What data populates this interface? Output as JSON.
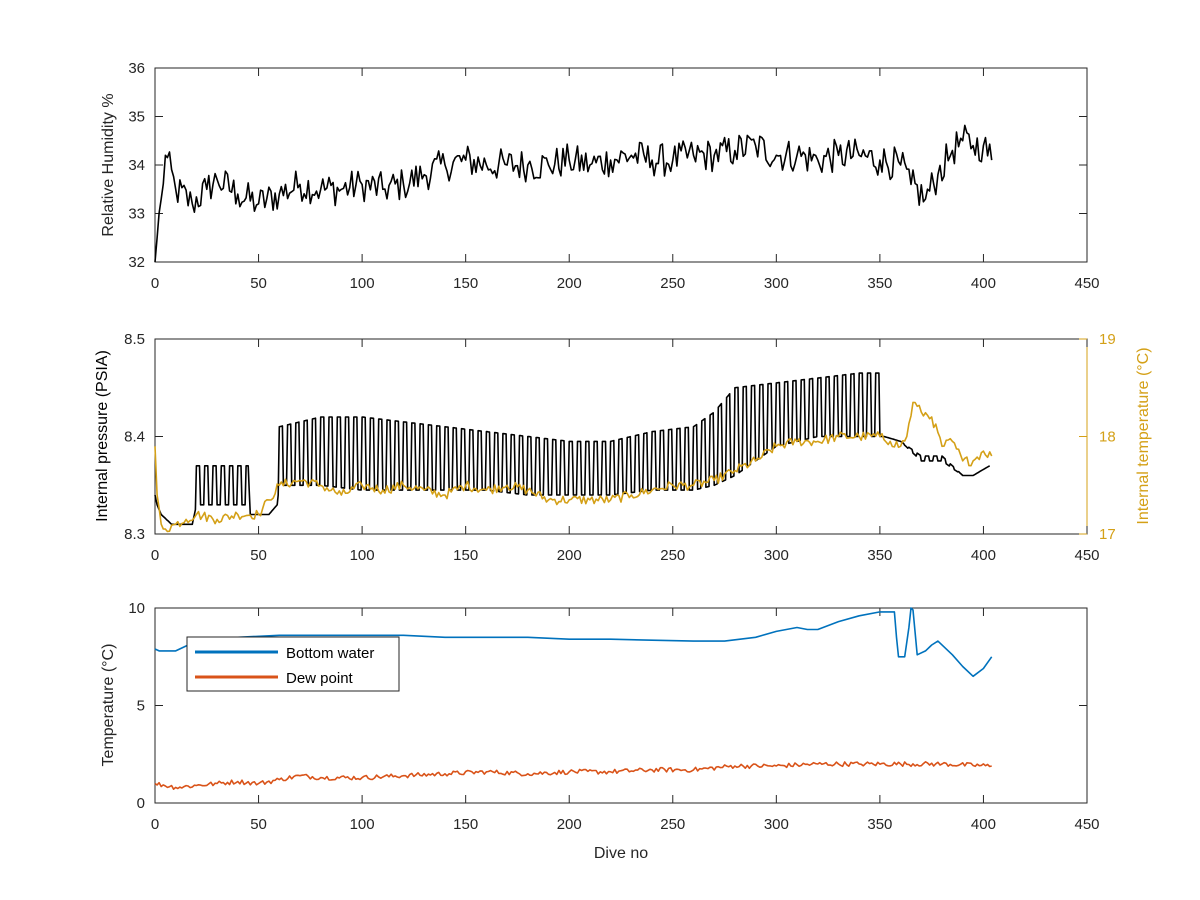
{
  "figure": {
    "xlabel_bottom": "Dive no"
  },
  "chart_data": [
    {
      "type": "line",
      "title": "",
      "xlabel": "",
      "ylabel": "Relative Humidity %",
      "xlim": [
        0,
        450
      ],
      "ylim": [
        32,
        36
      ],
      "xticks": [
        "0",
        "50",
        "100",
        "150",
        "200",
        "250",
        "300",
        "350",
        "400",
        "450"
      ],
      "yticks": [
        "32",
        "33",
        "34",
        "35",
        "36"
      ],
      "grid": false,
      "series": [
        {
          "color": "#000000",
          "noise": 0.35,
          "x": [
            0,
            1,
            3,
            5,
            10,
            18,
            25,
            30,
            40,
            50,
            60,
            70,
            80,
            90,
            100,
            110,
            120,
            130,
            140,
            150,
            160,
            170,
            180,
            190,
            200,
            210,
            220,
            230,
            240,
            250,
            260,
            270,
            280,
            290,
            300,
            310,
            320,
            330,
            340,
            350,
            360,
            365,
            372,
            378,
            385,
            390,
            395,
            400,
            404
          ],
          "y": [
            32.0,
            32.5,
            33.3,
            34.2,
            33.5,
            33.2,
            33.5,
            33.7,
            33.4,
            33.2,
            33.4,
            33.6,
            33.5,
            33.5,
            33.6,
            33.5,
            33.6,
            33.8,
            34.0,
            34.1,
            34.0,
            34.0,
            34.0,
            34.0,
            34.1,
            34.0,
            34.1,
            34.2,
            34.1,
            34.1,
            34.2,
            34.2,
            34.3,
            34.4,
            34.2,
            34.2,
            34.1,
            34.2,
            34.2,
            34.1,
            34.0,
            33.6,
            33.3,
            33.8,
            34.3,
            34.5,
            34.4,
            34.4,
            34.1
          ]
        }
      ]
    },
    {
      "type": "line",
      "title": "",
      "xlabel": "",
      "ylabel": "Internal pressure (PSIA)",
      "ylabel_right": "Internal temperature (°C)",
      "xlim": [
        0,
        450
      ],
      "ylim": [
        8.3,
        8.5
      ],
      "ylim_right": [
        17,
        19
      ],
      "xticks": [
        "0",
        "50",
        "100",
        "150",
        "200",
        "250",
        "300",
        "350",
        "400",
        "450"
      ],
      "yticks": [
        "8.3",
        "8.4",
        "8.5"
      ],
      "yticks_right": [
        "17",
        "18",
        "19"
      ],
      "grid": false,
      "series": [
        {
          "color": "#000000",
          "axis": "left",
          "square_wave": true,
          "x": [
            0,
            1,
            3,
            8,
            12,
            18,
            20,
            30,
            40,
            45,
            46,
            50,
            55,
            59,
            60,
            80,
            100,
            120,
            140,
            160,
            180,
            200,
            220,
            240,
            260,
            270,
            280,
            300,
            320,
            340,
            350,
            352,
            360,
            370,
            380,
            390,
            395,
            403
          ],
          "low": [
            8.34,
            8.33,
            8.32,
            8.31,
            8.31,
            8.31,
            8.33,
            8.33,
            8.33,
            8.33,
            8.32,
            8.32,
            8.32,
            8.33,
            8.35,
            8.35,
            8.345,
            8.345,
            8.345,
            8.345,
            8.34,
            8.34,
            8.34,
            8.345,
            8.345,
            8.35,
            8.36,
            8.39,
            8.4,
            8.4,
            8.4,
            8.4,
            8.395,
            8.375,
            8.375,
            8.36,
            8.36,
            8.37
          ],
          "high": [
            8.34,
            8.33,
            8.32,
            8.31,
            8.31,
            8.31,
            8.37,
            8.37,
            8.37,
            8.37,
            8.32,
            8.32,
            8.32,
            8.33,
            8.41,
            8.42,
            8.42,
            8.415,
            8.41,
            8.405,
            8.4,
            8.395,
            8.395,
            8.405,
            8.41,
            8.425,
            8.45,
            8.455,
            8.46,
            8.465,
            8.465,
            8.4,
            8.395,
            8.38,
            8.38,
            8.36,
            8.36,
            8.37
          ]
        },
        {
          "color": "#D4A017",
          "axis": "right",
          "noise": 0.05,
          "x": [
            0,
            1,
            3,
            5,
            10,
            15,
            20,
            30,
            40,
            50,
            55,
            60,
            70,
            80,
            90,
            100,
            110,
            120,
            130,
            140,
            150,
            160,
            170,
            180,
            190,
            200,
            210,
            220,
            230,
            240,
            250,
            260,
            270,
            280,
            290,
            300,
            310,
            320,
            330,
            340,
            350,
            355,
            360,
            363,
            366,
            370,
            375,
            380,
            385,
            390,
            395,
            400,
            404
          ],
          "y": [
            17.9,
            17.4,
            17.1,
            17.05,
            17.1,
            17.15,
            17.2,
            17.15,
            17.2,
            17.2,
            17.35,
            17.5,
            17.55,
            17.5,
            17.4,
            17.5,
            17.45,
            17.5,
            17.45,
            17.4,
            17.5,
            17.45,
            17.5,
            17.45,
            17.35,
            17.35,
            17.35,
            17.35,
            17.4,
            17.45,
            17.5,
            17.5,
            17.55,
            17.65,
            17.75,
            17.9,
            17.95,
            17.95,
            18.0,
            18.0,
            18.0,
            17.95,
            17.9,
            18.0,
            18.35,
            18.25,
            18.2,
            17.9,
            17.95,
            17.75,
            17.75,
            17.85,
            17.8
          ]
        }
      ]
    },
    {
      "type": "line",
      "title": "",
      "xlabel": "Dive no",
      "ylabel": "Temperature (°C)",
      "xlim": [
        0,
        450
      ],
      "ylim": [
        0,
        10
      ],
      "xticks": [
        "0",
        "50",
        "100",
        "150",
        "200",
        "250",
        "300",
        "350",
        "400",
        "450"
      ],
      "yticks": [
        "0",
        "5",
        "10"
      ],
      "grid": false,
      "legend": "top-left",
      "series": [
        {
          "name": "Bottom water",
          "color": "#0072BD",
          "x": [
            0,
            2,
            10,
            20,
            40,
            60,
            80,
            100,
            120,
            140,
            160,
            180,
            200,
            220,
            240,
            260,
            275,
            290,
            300,
            310,
            315,
            320,
            330,
            340,
            350,
            357,
            358,
            359,
            362,
            364,
            365,
            366,
            368,
            372,
            375,
            378,
            385,
            390,
            395,
            400,
            404
          ],
          "y": [
            7.9,
            7.8,
            7.8,
            8.3,
            8.5,
            8.6,
            8.6,
            8.6,
            8.6,
            8.5,
            8.5,
            8.5,
            8.4,
            8.4,
            8.35,
            8.3,
            8.3,
            8.5,
            8.8,
            9.0,
            8.9,
            8.9,
            9.3,
            9.6,
            9.8,
            9.8,
            8.5,
            7.5,
            7.5,
            9.0,
            10.0,
            9.9,
            7.6,
            7.8,
            8.1,
            8.3,
            7.6,
            7.0,
            6.5,
            6.9,
            7.5
          ]
        },
        {
          "name": "Dew point",
          "color": "#D95319",
          "noise": 0.12,
          "x": [
            0,
            10,
            20,
            30,
            40,
            50,
            60,
            70,
            80,
            100,
            120,
            140,
            160,
            180,
            200,
            220,
            240,
            260,
            280,
            300,
            320,
            340,
            360,
            380,
            404
          ],
          "y": [
            1.0,
            0.8,
            0.9,
            1.0,
            1.1,
            1.0,
            1.2,
            1.4,
            1.3,
            1.3,
            1.4,
            1.5,
            1.6,
            1.5,
            1.6,
            1.6,
            1.7,
            1.7,
            1.9,
            1.9,
            2.0,
            2.0,
            2.0,
            2.0,
            1.9
          ]
        }
      ]
    }
  ]
}
